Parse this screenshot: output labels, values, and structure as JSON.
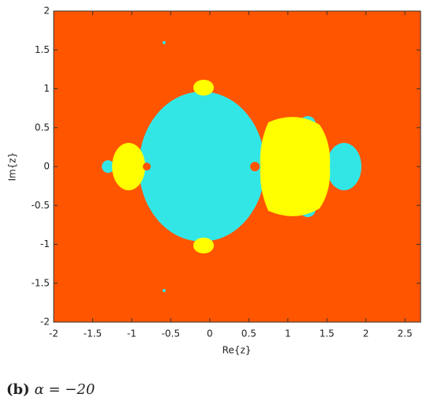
{
  "chart_data": {
    "type": "image",
    "xlabel": "Re{z}",
    "ylabel": "Im{z}",
    "xlim": [
      -2,
      2.7
    ],
    "ylim": [
      -2,
      2
    ],
    "xticks": [
      -2,
      -1.5,
      -1,
      -0.5,
      0,
      0.5,
      1,
      1.5,
      2,
      2.5
    ],
    "yticks": [
      -2,
      -1.5,
      -1,
      -0.5,
      0,
      0.5,
      1,
      1.5,
      2
    ]
  },
  "caption": {
    "label": "(b)",
    "text": "α = −20"
  }
}
